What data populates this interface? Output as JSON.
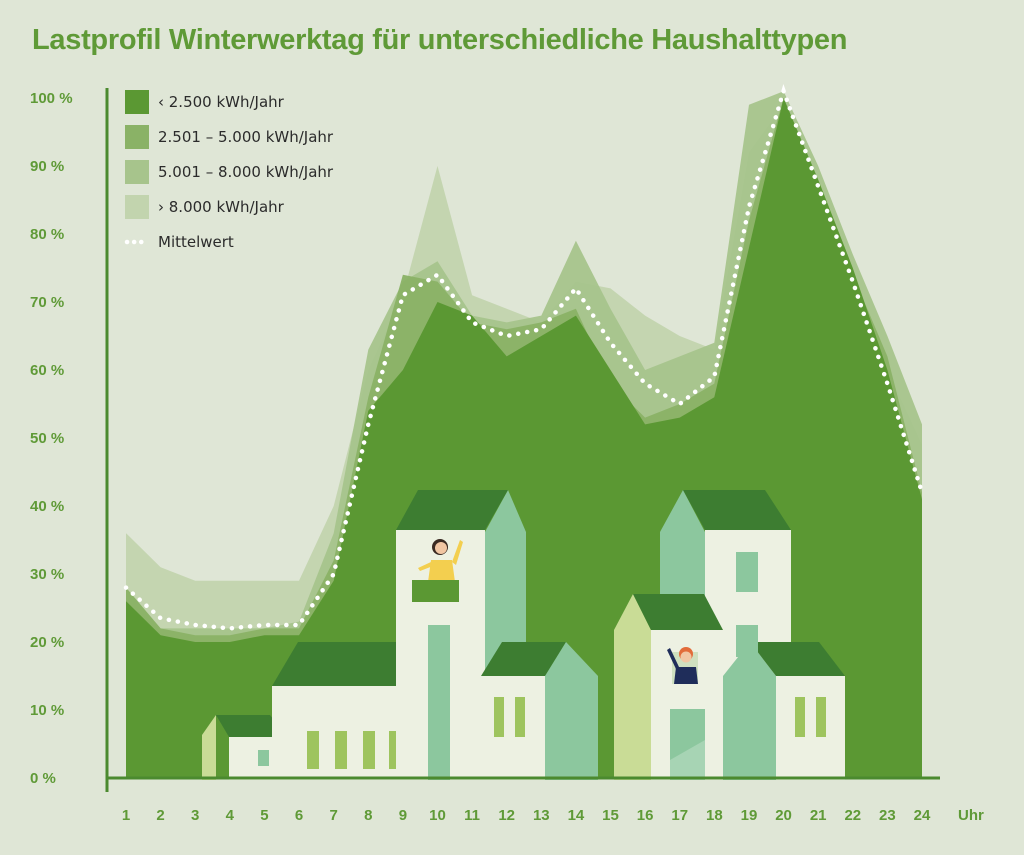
{
  "colors": {
    "background": "#dfe6d6",
    "title": "#5f9a37",
    "axis": "#5f9a37",
    "axis_line": "#4b8a2f",
    "legend_text": "#2b2b2b",
    "mean_line": "#ffffff",
    "series": [
      "#5b9833",
      "#8ab266",
      "#a7c48c",
      "#c2d4ae"
    ],
    "house_roof": "#3d7d31",
    "house_wall": "#edf1e2",
    "house_side": "#8cc79e",
    "house_side_light": "#c9dc96",
    "window": "#9ec45e",
    "window_green": "#8cc79e",
    "balcony": "#5b9833",
    "person_yellow": "#f3cf4f",
    "person_navy": "#1f2d5a",
    "skin": "#f1c6a3",
    "hair_dark": "#3a2a22",
    "hair_orange": "#e26c3a"
  },
  "title": "Lastprofil Winterwerktag für unterschiedliche Haushalttypen",
  "chart_data": {
    "type": "area",
    "x_categories": [
      "1",
      "2",
      "3",
      "4",
      "5",
      "6",
      "7",
      "8",
      "9",
      "10",
      "11",
      "12",
      "13",
      "14",
      "15",
      "16",
      "17",
      "18",
      "19",
      "20",
      "21",
      "22",
      "23",
      "24"
    ],
    "xlabel": "Uhr",
    "ylabel": "",
    "y_ticks": [
      "0 %",
      "10 %",
      "20 %",
      "30 %",
      "40 %",
      "50 %",
      "60 %",
      "70  %",
      "80 %",
      "90 %",
      "100 %"
    ],
    "ylim": [
      0,
      100
    ],
    "grid": false,
    "legend_position": "top-left",
    "series": [
      {
        "name": "‹ 2.500 kWh/Jahr",
        "values": [
          26,
          21,
          20,
          20,
          21,
          21,
          29,
          54,
          60,
          70,
          68,
          62,
          65,
          68,
          60,
          52,
          53,
          56,
          78,
          100,
          88,
          75,
          60,
          41
        ]
      },
      {
        "name": "2.501 – 5.000 kWh/Jahr",
        "values": [
          28,
          22,
          21,
          21,
          22,
          22,
          32,
          56,
          74,
          73,
          67,
          66,
          67,
          69,
          58,
          53,
          55,
          58,
          82,
          100,
          85,
          74,
          62,
          42
        ]
      },
      {
        "name": "5.001 – 8.000 kWh/Jahr",
        "values": [
          28,
          22,
          22,
          22,
          22,
          23,
          36,
          63,
          73,
          76,
          68,
          67,
          68,
          79,
          69,
          60,
          62,
          64,
          99,
          101,
          90,
          77,
          65,
          52
        ]
      },
      {
        "name": "› 8.000 kWh/Jahr",
        "values": [
          36,
          31,
          29,
          29,
          29,
          29,
          40,
          60,
          71,
          90,
          71,
          69,
          67,
          73,
          72,
          68,
          65,
          63,
          92,
          99,
          86,
          73,
          60,
          49
        ]
      },
      {
        "name": "Mittelwert",
        "style": "dotted",
        "values": [
          28,
          23.5,
          22.5,
          22,
          22.5,
          22.5,
          30,
          52,
          71,
          74,
          67,
          65,
          66,
          72,
          64,
          58,
          55,
          59,
          84,
          101,
          87,
          73,
          58,
          42
        ]
      }
    ]
  }
}
